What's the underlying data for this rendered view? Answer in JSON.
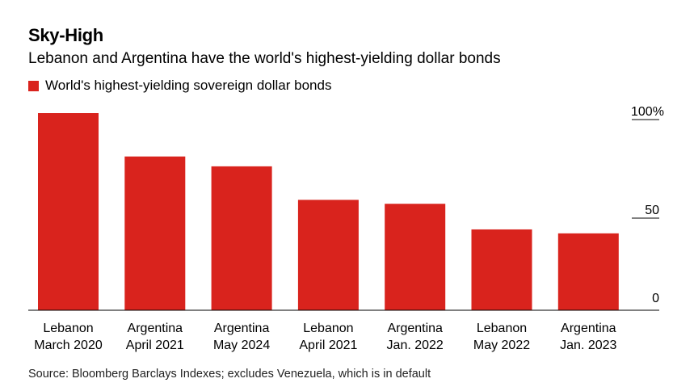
{
  "title": "Sky-High",
  "subtitle": "Lebanon and Argentina have the world's highest-yielding dollar bonds",
  "source": "Source: Bloomberg Barclays Indexes; excludes Venezuela, which is in default",
  "colors": {
    "bar": "#d9231d",
    "axis": "#000000",
    "tick": "#000000"
  },
  "chart_data": {
    "type": "bar",
    "title": "Sky-High",
    "subtitle": "Lebanon and Argentina have the world's highest-yielding dollar bonds",
    "legend": [
      "World's highest-yielding sovereign dollar bonds"
    ],
    "legend_placement": "top-left",
    "categories": [
      [
        "Lebanon",
        "March 2020"
      ],
      [
        "Argentina",
        "April 2021"
      ],
      [
        "Argentina",
        "May 2024"
      ],
      [
        "Lebanon",
        "April 2021"
      ],
      [
        "Argentina",
        "Jan. 2022"
      ],
      [
        "Lebanon",
        "May 2022"
      ],
      [
        "Argentina",
        "Jan. 2023"
      ]
    ],
    "series": [
      {
        "name": "World's highest-yielding sovereign dollar bonds",
        "values": [
          100,
          78,
          73,
          56,
          54,
          41,
          39
        ]
      }
    ],
    "yticks": [
      {
        "value": 0,
        "label": "0"
      },
      {
        "value": 50,
        "label": "50"
      },
      {
        "value": 100,
        "label": "100%"
      }
    ],
    "ylim": [
      0,
      100
    ],
    "grid": false,
    "xlabel": "",
    "ylabel": ""
  }
}
